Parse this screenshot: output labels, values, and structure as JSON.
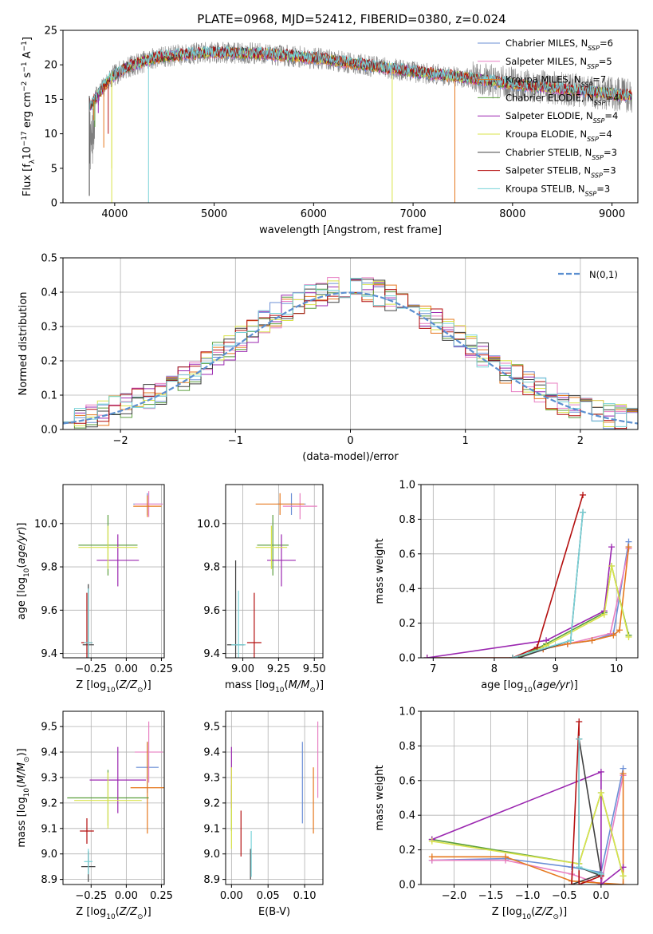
{
  "figure": {
    "title": "PLATE=0968, MJD=52412, FIBERID=0380, z=0.024"
  },
  "series_legend": [
    {
      "label": "Chabrier MILES, N",
      "sub": "SSP",
      "suffix": "=6",
      "color": "#6b8fd6"
    },
    {
      "label": "Salpeter MILES, N",
      "sub": "SSP",
      "suffix": "=5",
      "color": "#e87fc2"
    },
    {
      "label": "Kroupa MILES, N",
      "sub": "SSP",
      "suffix": "=7",
      "color": "#e6781e"
    },
    {
      "label": "Chabrier ELODIE, N",
      "sub": "SSP",
      "suffix": "=4",
      "color": "#5a9e3c"
    },
    {
      "label": "Salpeter ELODIE, N",
      "sub": "SSP",
      "suffix": "=4",
      "color": "#9b27b0"
    },
    {
      "label": "Kroupa ELODIE, N",
      "sub": "SSP",
      "suffix": "=4",
      "color": "#d9e34a"
    },
    {
      "label": "Chabrier STELIB, N",
      "sub": "SSP",
      "suffix": "=3",
      "color": "#404040"
    },
    {
      "label": "Salpeter STELIB, N",
      "sub": "SSP",
      "suffix": "=3",
      "color": "#b40f0f"
    },
    {
      "label": "Kroupa STELIB, N",
      "sub": "SSP",
      "suffix": "=3",
      "color": "#78d2d8"
    }
  ],
  "colors": {
    "data_spectrum": "#808080",
    "model_spectrum": "#78d2d8",
    "normal_curve": "#5b8fd0"
  },
  "chart_data": [
    {
      "id": "spectrum",
      "type": "line",
      "xlabel": "wavelength [Angstrom, rest frame]",
      "ylabel_parts": [
        "Flux [f",
        "λ",
        "10",
        "−17",
        " erg cm",
        "−2",
        " s",
        "−1",
        " A",
        "−1",
        "]"
      ],
      "xlim": [
        3480,
        9260
      ],
      "ylim": [
        0,
        25
      ],
      "xticks": [
        4000,
        5000,
        6000,
        7000,
        8000,
        9000
      ],
      "yticks": [
        0,
        5,
        10,
        15,
        20,
        25
      ],
      "grid": false,
      "legend_position": "upper-right",
      "continuum": [
        [
          3750,
          14
        ],
        [
          3800,
          15
        ],
        [
          3850,
          16
        ],
        [
          3900,
          17
        ],
        [
          3950,
          18
        ],
        [
          4000,
          18.5
        ],
        [
          4100,
          19.5
        ],
        [
          4200,
          20
        ],
        [
          4300,
          20.5
        ],
        [
          4400,
          21
        ],
        [
          4500,
          21.2
        ],
        [
          4700,
          21.5
        ],
        [
          5000,
          21.8
        ],
        [
          5500,
          21.6
        ],
        [
          6000,
          21
        ],
        [
          6500,
          20
        ],
        [
          7000,
          19
        ],
        [
          7500,
          18.2
        ],
        [
          8000,
          17.2
        ],
        [
          8500,
          16.5
        ],
        [
          9000,
          15.8
        ],
        [
          9200,
          15.5
        ]
      ],
      "drops": [
        {
          "x": 3790,
          "y": 12,
          "series": 2
        },
        {
          "x": 3800,
          "y": 11,
          "series": 3
        },
        {
          "x": 3835,
          "y": 13,
          "series": 4
        },
        {
          "x": 3890,
          "y": 8,
          "series": 2
        },
        {
          "x": 3935,
          "y": 10,
          "series": 7
        },
        {
          "x": 3970,
          "y": 5,
          "series": 5
        },
        {
          "x": 3970,
          "y": 0,
          "series": 5
        },
        {
          "x": 4340,
          "y": 0,
          "series": 8
        },
        {
          "x": 6790,
          "y": 0,
          "series": 5
        },
        {
          "x": 7420,
          "y": 0,
          "series": 2
        },
        {
          "x": 3745,
          "y": 1,
          "series": 6
        }
      ]
    },
    {
      "id": "residuals",
      "type": "histogram",
      "xlabel": "(data-model)/error",
      "ylabel": "Normed distribution",
      "xlim": [
        -2.5,
        2.5
      ],
      "ylim": [
        0,
        0.5
      ],
      "xticks": [
        -2,
        -1,
        0,
        1,
        2
      ],
      "yticks": [
        0.0,
        0.1,
        0.2,
        0.3,
        0.4,
        0.5
      ],
      "grid": true,
      "legend_position": "upper-right",
      "legend_label": "N(0,1)",
      "bin_width": 0.1,
      "bins_start": -2.5,
      "n_bins": 50
    },
    {
      "id": "age_vs_Z",
      "type": "errorbar",
      "xlabel": "Z [log10(Z/Z⊙)]",
      "ylabel": "age  [log10(age/yr)]",
      "xlim": [
        -0.45,
        0.27
      ],
      "ylim": [
        9.38,
        10.18
      ],
      "xticks": [
        -0.25,
        0.0,
        0.25
      ],
      "yticks": [
        9.4,
        9.6,
        9.8,
        10.0
      ],
      "grid": true,
      "points": [
        {
          "x": 0.15,
          "y": 10.09,
          "xerr": 0.1,
          "yerr": 0.05,
          "series": 0
        },
        {
          "x": 0.16,
          "y": 10.09,
          "xerr": 0.1,
          "yerr": 0.06,
          "series": 1
        },
        {
          "x": 0.15,
          "y": 10.08,
          "xerr": 0.1,
          "yerr": 0.05,
          "series": 2
        },
        {
          "x": -0.13,
          "y": 9.9,
          "xerr": 0.21,
          "yerr": 0.14,
          "series": 3
        },
        {
          "x": -0.06,
          "y": 9.83,
          "xerr": 0.15,
          "yerr": 0.12,
          "series": 4
        },
        {
          "x": -0.13,
          "y": 9.89,
          "xerr": 0.21,
          "yerr": 0.1,
          "series": 5
        },
        {
          "x": -0.27,
          "y": 9.44,
          "xerr": 0.04,
          "yerr": 0.28,
          "series": 6
        },
        {
          "x": -0.28,
          "y": 9.45,
          "xerr": 0.04,
          "yerr": 0.23,
          "series": 7
        },
        {
          "x": -0.27,
          "y": 9.45,
          "xerr": 0.03,
          "yerr": 0.25,
          "series": 8
        }
      ]
    },
    {
      "id": "age_vs_mass",
      "type": "errorbar",
      "xlabel": "mass [log10(M/M⊙)]",
      "ylabel": "",
      "xlim": [
        8.88,
        9.56
      ],
      "ylim": [
        9.38,
        10.18
      ],
      "xticks": [
        9.0,
        9.25,
        9.5
      ],
      "yticks": [
        9.4,
        9.6,
        9.8,
        10.0
      ],
      "grid": true,
      "points": [
        {
          "x": 9.34,
          "y": 10.09,
          "xerr": 0.1,
          "yerr": 0.05,
          "series": 0
        },
        {
          "x": 9.4,
          "y": 10.08,
          "xerr": 0.12,
          "yerr": 0.06,
          "series": 1
        },
        {
          "x": 9.26,
          "y": 10.09,
          "xerr": 0.17,
          "yerr": 0.05,
          "series": 2
        },
        {
          "x": 9.21,
          "y": 9.9,
          "xerr": 0.11,
          "yerr": 0.14,
          "series": 3
        },
        {
          "x": 9.27,
          "y": 9.83,
          "xerr": 0.1,
          "yerr": 0.12,
          "series": 4
        },
        {
          "x": 9.2,
          "y": 9.89,
          "xerr": 0.11,
          "yerr": 0.1,
          "series": 5
        },
        {
          "x": 8.95,
          "y": 9.44,
          "xerr": 0.06,
          "yerr": 0.39,
          "series": 6
        },
        {
          "x": 9.08,
          "y": 9.45,
          "xerr": 0.05,
          "yerr": 0.23,
          "series": 7
        },
        {
          "x": 8.97,
          "y": 9.44,
          "xerr": 0.05,
          "yerr": 0.25,
          "series": 8
        }
      ]
    },
    {
      "id": "massweight_vs_age",
      "type": "line",
      "xlabel": "age  [log10(age/yr)]",
      "ylabel": "mass weight",
      "xlim": [
        6.8,
        10.35
      ],
      "ylim": [
        0,
        1.0
      ],
      "xticks": [
        7,
        8,
        9,
        10
      ],
      "yticks": [
        0.0,
        0.2,
        0.4,
        0.6,
        0.8,
        1.0
      ],
      "grid": true,
      "series": [
        {
          "series": 0,
          "points": [
            [
              6.9,
              0.0
            ],
            [
              8.3,
              0.0
            ],
            [
              8.8,
              0.05
            ],
            [
              9.2,
              0.08
            ],
            [
              9.6,
              0.1
            ],
            [
              9.95,
              0.14
            ],
            [
              10.2,
              0.67
            ]
          ]
        },
        {
          "series": 1,
          "points": [
            [
              6.9,
              0.0
            ],
            [
              8.3,
              0.0
            ],
            [
              8.8,
              0.05
            ],
            [
              9.2,
              0.08
            ],
            [
              9.9,
              0.14
            ],
            [
              10.2,
              0.63
            ]
          ]
        },
        {
          "series": 2,
          "points": [
            [
              6.9,
              0.0
            ],
            [
              8.3,
              0.0
            ],
            [
              8.8,
              0.05
            ],
            [
              9.2,
              0.08
            ],
            [
              9.6,
              0.1
            ],
            [
              9.95,
              0.13
            ],
            [
              10.05,
              0.16
            ],
            [
              10.2,
              0.64
            ]
          ]
        },
        {
          "series": 3,
          "points": [
            [
              8.4,
              0.0
            ],
            [
              8.85,
              0.08
            ],
            [
              9.8,
              0.26
            ],
            [
              9.92,
              0.53
            ],
            [
              10.2,
              0.13
            ]
          ]
        },
        {
          "series": 4,
          "points": [
            [
              6.9,
              0.0
            ],
            [
              8.85,
              0.1
            ],
            [
              9.8,
              0.27
            ],
            [
              9.92,
              0.64
            ]
          ]
        },
        {
          "series": 5,
          "points": [
            [
              8.4,
              0.0
            ],
            [
              8.85,
              0.07
            ],
            [
              9.8,
              0.25
            ],
            [
              9.92,
              0.53
            ],
            [
              10.2,
              0.12
            ]
          ]
        },
        {
          "series": 6,
          "points": [
            [
              8.4,
              0.0
            ],
            [
              9.25,
              0.1
            ],
            [
              9.45,
              0.84
            ]
          ]
        },
        {
          "series": 7,
          "points": [
            [
              8.3,
              0.0
            ],
            [
              8.7,
              0.06
            ],
            [
              9.45,
              0.94
            ]
          ]
        },
        {
          "series": 8,
          "points": [
            [
              8.3,
              0.0
            ],
            [
              9.25,
              0.1
            ],
            [
              9.45,
              0.84
            ]
          ]
        }
      ]
    },
    {
      "id": "mass_vs_Z",
      "type": "errorbar",
      "xlabel": "Z [log10(Z/Z⊙)]",
      "ylabel": "mass [log10(M/M⊙)]",
      "xlim": [
        -0.45,
        0.27
      ],
      "ylim": [
        8.88,
        9.56
      ],
      "xticks": [
        -0.25,
        0.0,
        0.25
      ],
      "yticks": [
        8.9,
        9.0,
        9.1,
        9.2,
        9.3,
        9.4,
        9.5
      ],
      "grid": true,
      "points": [
        {
          "x": 0.15,
          "y": 9.34,
          "xerr": 0.08,
          "yerr": 0.1,
          "series": 0
        },
        {
          "x": 0.16,
          "y": 9.4,
          "xerr": 0.1,
          "yerr": 0.12,
          "series": 1
        },
        {
          "x": 0.15,
          "y": 9.26,
          "xerr": 0.12,
          "yerr": 0.18,
          "series": 2
        },
        {
          "x": -0.13,
          "y": 9.22,
          "xerr": 0.29,
          "yerr": 0.11,
          "series": 3
        },
        {
          "x": -0.06,
          "y": 9.29,
          "xerr": 0.2,
          "yerr": 0.13,
          "series": 4
        },
        {
          "x": -0.13,
          "y": 9.21,
          "xerr": 0.24,
          "yerr": 0.11,
          "series": 5
        },
        {
          "x": -0.27,
          "y": 8.95,
          "xerr": 0.05,
          "yerr": 0.06,
          "series": 6
        },
        {
          "x": -0.28,
          "y": 9.09,
          "xerr": 0.05,
          "yerr": 0.05,
          "series": 7
        },
        {
          "x": -0.27,
          "y": 8.97,
          "xerr": 0.03,
          "yerr": 0.05,
          "series": 8
        }
      ]
    },
    {
      "id": "mass_vs_EBV",
      "type": "errorbar",
      "xlabel": "E(B-V)",
      "ylabel": "",
      "xlim": [
        -0.008,
        0.125
      ],
      "ylim": [
        8.88,
        9.56
      ],
      "xticks": [
        0.0,
        0.05,
        0.1
      ],
      "yticks": [
        8.9,
        9.0,
        9.1,
        9.2,
        9.3,
        9.4,
        9.5
      ],
      "grid": true,
      "points": [
        {
          "x": 0.097,
          "y": 9.28,
          "xerr": 0,
          "yerr": 0.16,
          "series": 0
        },
        {
          "x": 0.118,
          "y": 9.37,
          "xerr": 0,
          "yerr": 0.15,
          "series": 1
        },
        {
          "x": 0.112,
          "y": 9.21,
          "xerr": 0,
          "yerr": 0.13,
          "series": 2
        },
        {
          "x": 0.0,
          "y": 9.18,
          "xerr": 0,
          "yerr": 0.09,
          "series": 3
        },
        {
          "x": 0.0,
          "y": 9.3,
          "xerr": 0,
          "yerr": 0.12,
          "series": 4
        },
        {
          "x": 0.0,
          "y": 9.18,
          "xerr": 0,
          "yerr": 0.16,
          "series": 5
        },
        {
          "x": 0.026,
          "y": 8.96,
          "xerr": 0,
          "yerr": 0.06,
          "series": 6
        },
        {
          "x": 0.013,
          "y": 9.08,
          "xerr": 0,
          "yerr": 0.09,
          "series": 7
        },
        {
          "x": 0.027,
          "y": 9.0,
          "xerr": 0,
          "yerr": 0.09,
          "series": 8
        }
      ]
    },
    {
      "id": "massweight_vs_Z",
      "type": "line",
      "xlabel": "Z [log10(Z/Z⊙)]",
      "ylabel": "mass weight",
      "xlim": [
        -2.45,
        0.5
      ],
      "ylim": [
        0,
        1.0
      ],
      "xticks": [
        -2.0,
        -1.5,
        -1.0,
        -0.5,
        0.0
      ],
      "yticks": [
        0.0,
        0.2,
        0.4,
        0.6,
        0.8,
        1.0
      ],
      "grid": true,
      "series": [
        {
          "series": 0,
          "points": [
            [
              -2.3,
              0.14
            ],
            [
              -1.3,
              0.15
            ],
            [
              -0.4,
              0.1
            ],
            [
              0.0,
              0.07
            ],
            [
              0.3,
              0.67
            ]
          ]
        },
        {
          "series": 1,
          "points": [
            [
              -2.3,
              0.14
            ],
            [
              -1.3,
              0.14
            ],
            [
              -0.4,
              0.06
            ],
            [
              0.0,
              0.0
            ],
            [
              0.3,
              0.63
            ]
          ]
        },
        {
          "series": 2,
          "points": [
            [
              -2.3,
              0.16
            ],
            [
              -1.3,
              0.16
            ],
            [
              -0.4,
              0.02
            ],
            [
              0.3,
              0.0
            ],
            [
              0.3,
              0.64
            ]
          ]
        },
        {
          "series": 3,
          "points": [
            [
              -2.3,
              0.26
            ],
            [
              -0.3,
              0.12
            ],
            [
              0.0,
              0.53
            ],
            [
              0.3,
              0.05
            ]
          ]
        },
        {
          "series": 4,
          "points": [
            [
              -2.3,
              0.26
            ],
            [
              0.0,
              0.65
            ],
            [
              0.0,
              0.0
            ],
            [
              0.3,
              0.1
            ]
          ]
        },
        {
          "series": 5,
          "points": [
            [
              -2.3,
              0.25
            ],
            [
              -0.3,
              0.12
            ],
            [
              0.0,
              0.53
            ],
            [
              0.3,
              0.05
            ]
          ]
        },
        {
          "series": 6,
          "points": [
            [
              -0.4,
              0.0
            ],
            [
              0.0,
              0.06
            ],
            [
              -0.3,
              0.84
            ],
            [
              -0.3,
              0.1
            ],
            [
              0.0,
              0.05
            ]
          ]
        },
        {
          "series": 7,
          "points": [
            [
              -0.4,
              0.0
            ],
            [
              -0.3,
              0.94
            ],
            [
              -0.3,
              0.0
            ],
            [
              0.0,
              0.05
            ]
          ]
        },
        {
          "series": 8,
          "points": [
            [
              -0.3,
              0.84
            ],
            [
              -0.3,
              0.1
            ],
            [
              0.0,
              0.06
            ]
          ]
        }
      ]
    }
  ]
}
